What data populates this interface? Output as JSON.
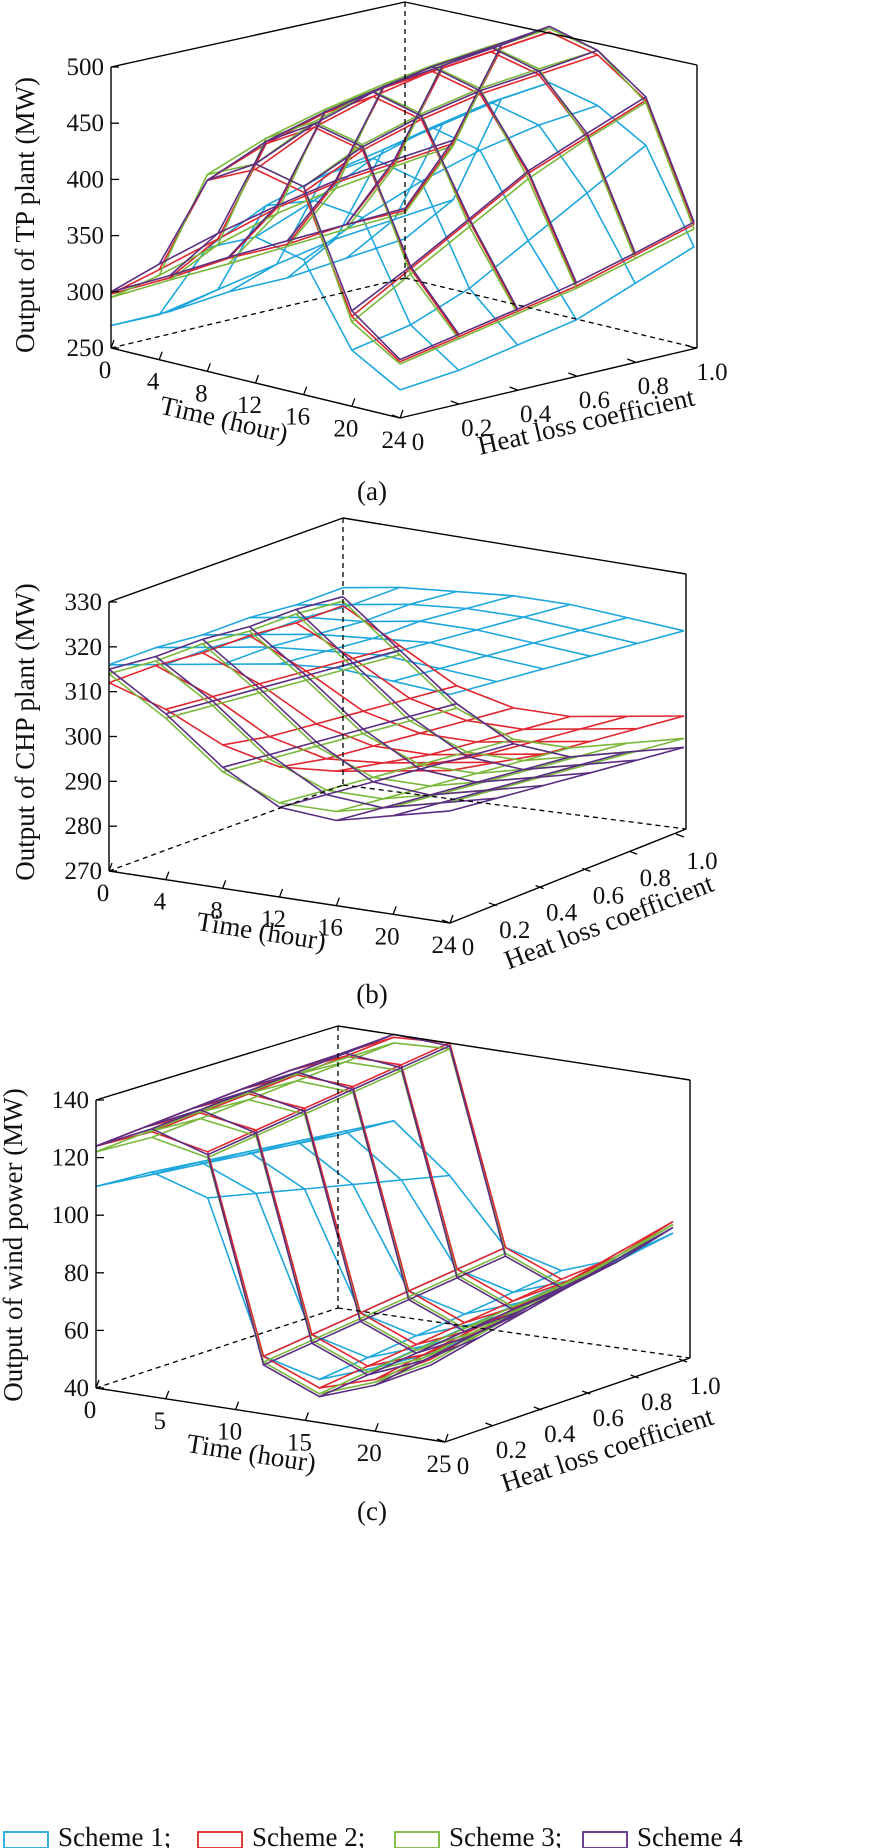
{
  "legend": [
    {
      "label": "Scheme 1;",
      "color": "#1ea7dd"
    },
    {
      "label": "Scheme 2;",
      "color": "#e0262e"
    },
    {
      "label": "Scheme 3;",
      "color": "#79b83a"
    },
    {
      "label": "Scheme 4",
      "color": "#5b2e82"
    }
  ],
  "chart_data": [
    {
      "type": "surface-3d",
      "caption": "(a)",
      "zlabel": "Output of TP plant (MW)",
      "xlabel": "Time (hour)",
      "ylabel": "Heat loss coefficient",
      "x_ticks": [
        "0",
        "4",
        "8",
        "12",
        "16",
        "20",
        "24"
      ],
      "y_ticks": [
        "0",
        "0.2",
        "0.4",
        "0.6",
        "0.8",
        "1.0"
      ],
      "z_ticks": [
        "250",
        "300",
        "350",
        "400",
        "450",
        "500"
      ],
      "xlim": [
        0,
        24
      ],
      "ylim": [
        0,
        1.0
      ],
      "zlim": [
        250,
        500
      ],
      "time": [
        0,
        4,
        8,
        12,
        16,
        20,
        24
      ],
      "heat_loss": [
        0,
        0.2,
        0.4,
        0.6,
        0.8,
        1.0
      ],
      "series": [
        {
          "name": "Scheme 1",
          "z": [
            [
              270,
              290,
              360,
              380,
              370,
              300,
              275
            ],
            [
              270,
              300,
              385,
              400,
              395,
              310,
              280
            ],
            [
              275,
              310,
              400,
              425,
              415,
              330,
              290
            ],
            [
              275,
              320,
              410,
              440,
              430,
              360,
              300
            ],
            [
              280,
              325,
              420,
              450,
              440,
              390,
              320
            ],
            [
              285,
              330,
              430,
              455,
              445,
              420,
              340
            ]
          ]
        },
        {
          "name": "Scheme 2",
          "z": [
            [
              298,
              330,
              420,
              440,
              430,
              330,
              300
            ],
            [
              300,
              345,
              440,
              465,
              455,
              360,
              310
            ],
            [
              305,
              360,
              455,
              480,
              470,
              390,
              320
            ],
            [
              305,
              370,
              465,
              490,
              480,
              420,
              330
            ],
            [
              310,
              375,
              470,
              495,
              485,
              440,
              345
            ],
            [
              310,
              380,
              475,
              500,
              490,
              460,
              360
            ]
          ]
        },
        {
          "name": "Scheme 3",
          "z": [
            [
              295,
              325,
              425,
              445,
              435,
              325,
              298
            ],
            [
              298,
              340,
              445,
              470,
              460,
              355,
              308
            ],
            [
              300,
              355,
              458,
              485,
              475,
              385,
              318
            ],
            [
              303,
              365,
              468,
              495,
              485,
              415,
              328
            ],
            [
              306,
              372,
              474,
              500,
              490,
              438,
              342
            ],
            [
              308,
              378,
              478,
              503,
              494,
              458,
              356
            ]
          ]
        },
        {
          "name": "Scheme 4",
          "z": [
            [
              300,
              335,
              420,
              445,
              435,
              335,
              302
            ],
            [
              302,
              350,
              442,
              468,
              458,
              362,
              312
            ],
            [
              306,
              362,
              456,
              484,
              473,
              392,
              322
            ],
            [
              308,
              372,
              466,
              494,
              483,
              422,
              333
            ],
            [
              310,
              378,
              472,
              499,
              488,
              443,
              347
            ],
            [
              312,
              383,
              478,
              505,
              494,
              463,
              362
            ]
          ]
        }
      ]
    },
    {
      "type": "surface-3d",
      "caption": "(b)",
      "zlabel": "Output of CHP plant (MW)",
      "xlabel": "Time (hour)",
      "ylabel": "Heat loss coefficient",
      "x_ticks": [
        "0",
        "4",
        "8",
        "12",
        "16",
        "20",
        "24"
      ],
      "y_ticks": [
        "0",
        "0.2",
        "0.4",
        "0.6",
        "0.8",
        "1.0"
      ],
      "z_ticks": [
        "270",
        "280",
        "290",
        "300",
        "310",
        "320",
        "330"
      ],
      "xlim": [
        0,
        24
      ],
      "ylim": [
        0,
        1.0
      ],
      "zlim": [
        270,
        330
      ],
      "time": [
        0,
        4,
        8,
        12,
        16,
        20,
        24
      ],
      "heat_loss": [
        0,
        0.2,
        0.4,
        0.6,
        0.8,
        1.0
      ],
      "series": [
        {
          "name": "Scheme 1",
          "z": [
            [
              316,
              318,
              320,
              322,
              323,
              322,
              321
            ],
            [
              316,
              318,
              320,
              321,
              322,
              321,
              320
            ],
            [
              315,
              317,
              319,
              320,
              321,
              320,
              319
            ],
            [
              315,
              317,
              318,
              320,
              320,
              319,
              318
            ],
            [
              314,
              316,
              318,
              319,
              319,
              318,
              317
            ],
            [
              314,
              316,
              317,
              318,
              318,
              317,
              316
            ]
          ]
        },
        {
          "name": "Scheme 2",
          "z": [
            [
              312,
              308,
              302,
              299,
              300,
              302,
              304
            ],
            [
              312,
              307,
              300,
              297,
              298,
              300,
              302
            ],
            [
              311,
              306,
              299,
              296,
              296,
              298,
              300
            ],
            [
              311,
              305,
              298,
              295,
              295,
              297,
              299
            ],
            [
              310,
              304,
              297,
              294,
              294,
              296,
              298
            ],
            [
              310,
              303,
              296,
              293,
              293,
              295,
              297
            ]
          ]
        },
        {
          "name": "Scheme 3",
          "z": [
            [
              314,
              306,
              296,
              291,
              291,
              294,
              297
            ],
            [
              313,
              305,
              295,
              290,
              290,
              293,
              296
            ],
            [
              313,
              304,
              294,
              289,
              289,
              292,
              295
            ],
            [
              312,
              303,
              293,
              288,
              288,
              291,
              294
            ],
            [
              312,
              302,
              292,
              287,
              287,
              290,
              293
            ],
            [
              311,
              301,
              291,
              286,
              286,
              289,
              292
            ]
          ]
        },
        {
          "name": "Scheme 4",
          "z": [
            [
              315,
              307,
              297,
              290,
              289,
              292,
              295
            ],
            [
              314,
              306,
              296,
              289,
              288,
              291,
              294
            ],
            [
              314,
              305,
              295,
              288,
              287,
              290,
              293
            ],
            [
              313,
              304,
              294,
              287,
              286,
              289,
              292
            ],
            [
              313,
              303,
              293,
              286,
              285,
              288,
              291
            ],
            [
              312,
              302,
              292,
              285,
              284,
              287,
              290
            ]
          ]
        }
      ]
    },
    {
      "type": "surface-3d",
      "caption": "(c)",
      "zlabel": "Output of wind power (MW)",
      "xlabel": "Time (hour)",
      "ylabel": "Heat loss coefficient",
      "x_ticks": [
        "0",
        "5",
        "10",
        "15",
        "20",
        "25"
      ],
      "y_ticks": [
        "0",
        "0.2",
        "0.4",
        "0.6",
        "0.8",
        "1.0"
      ],
      "z_ticks": [
        "40",
        "60",
        "80",
        "100",
        "120",
        "140"
      ],
      "xlim": [
        0,
        25
      ],
      "ylim": [
        0,
        1.0
      ],
      "zlim": [
        40,
        140
      ],
      "time": [
        0,
        4,
        8,
        12,
        16,
        20,
        24
      ],
      "heat_loss": [
        0,
        0.2,
        0.4,
        0.6,
        0.8,
        1.0
      ],
      "series": [
        {
          "name": "Scheme 1",
          "z": [
            [
              110,
              118,
              112,
              60,
              55,
              62,
              70
            ],
            [
              108,
              116,
              108,
              62,
              57,
              64,
              72
            ],
            [
              106,
              114,
              104,
              64,
              59,
              66,
              75
            ],
            [
              104,
              112,
              100,
              66,
              61,
              68,
              78
            ],
            [
              102,
              110,
              96,
              68,
              63,
              70,
              81
            ],
            [
              100,
              108,
              92,
              70,
              65,
              72,
              84
            ]
          ]
        },
        {
          "name": "Scheme 2",
          "z": [
            [
              124,
              132,
              128,
              60,
              52,
              58,
              68
            ],
            [
              125,
              133,
              130,
              62,
              54,
              61,
              72
            ],
            [
              126,
              134,
              132,
              64,
              56,
              64,
              76
            ],
            [
              127,
              135,
              134,
              66,
              58,
              67,
              80
            ],
            [
              128,
              136,
              136,
              68,
              60,
              70,
              84
            ],
            [
              128,
              137,
              138,
              70,
              62,
              73,
              88
            ]
          ]
        },
        {
          "name": "Scheme 3",
          "z": [
            [
              122,
              130,
              126,
              58,
              50,
              57,
              67
            ],
            [
              123,
              131,
              128,
              60,
              52,
              60,
              71
            ],
            [
              124,
              132,
              130,
              62,
              54,
              63,
              75
            ],
            [
              125,
              133,
              132,
              64,
              56,
              66,
              79
            ],
            [
              126,
              134,
              134,
              66,
              58,
              69,
              83
            ],
            [
              126,
              135,
              136,
              68,
              60,
              72,
              87
            ]
          ]
        },
        {
          "name": "Scheme 4",
          "z": [
            [
              124,
              133,
              127,
              57,
              49,
              56,
              66
            ],
            [
              125,
              134,
              129,
              59,
              51,
              59,
              70
            ],
            [
              126,
              135,
              131,
              61,
              53,
              62,
              74
            ],
            [
              127,
              136,
              133,
              63,
              55,
              65,
              78
            ],
            [
              128,
              137,
              135,
              65,
              57,
              68,
              82
            ],
            [
              128,
              138,
              137,
              67,
              59,
              71,
              86
            ]
          ]
        }
      ]
    }
  ]
}
